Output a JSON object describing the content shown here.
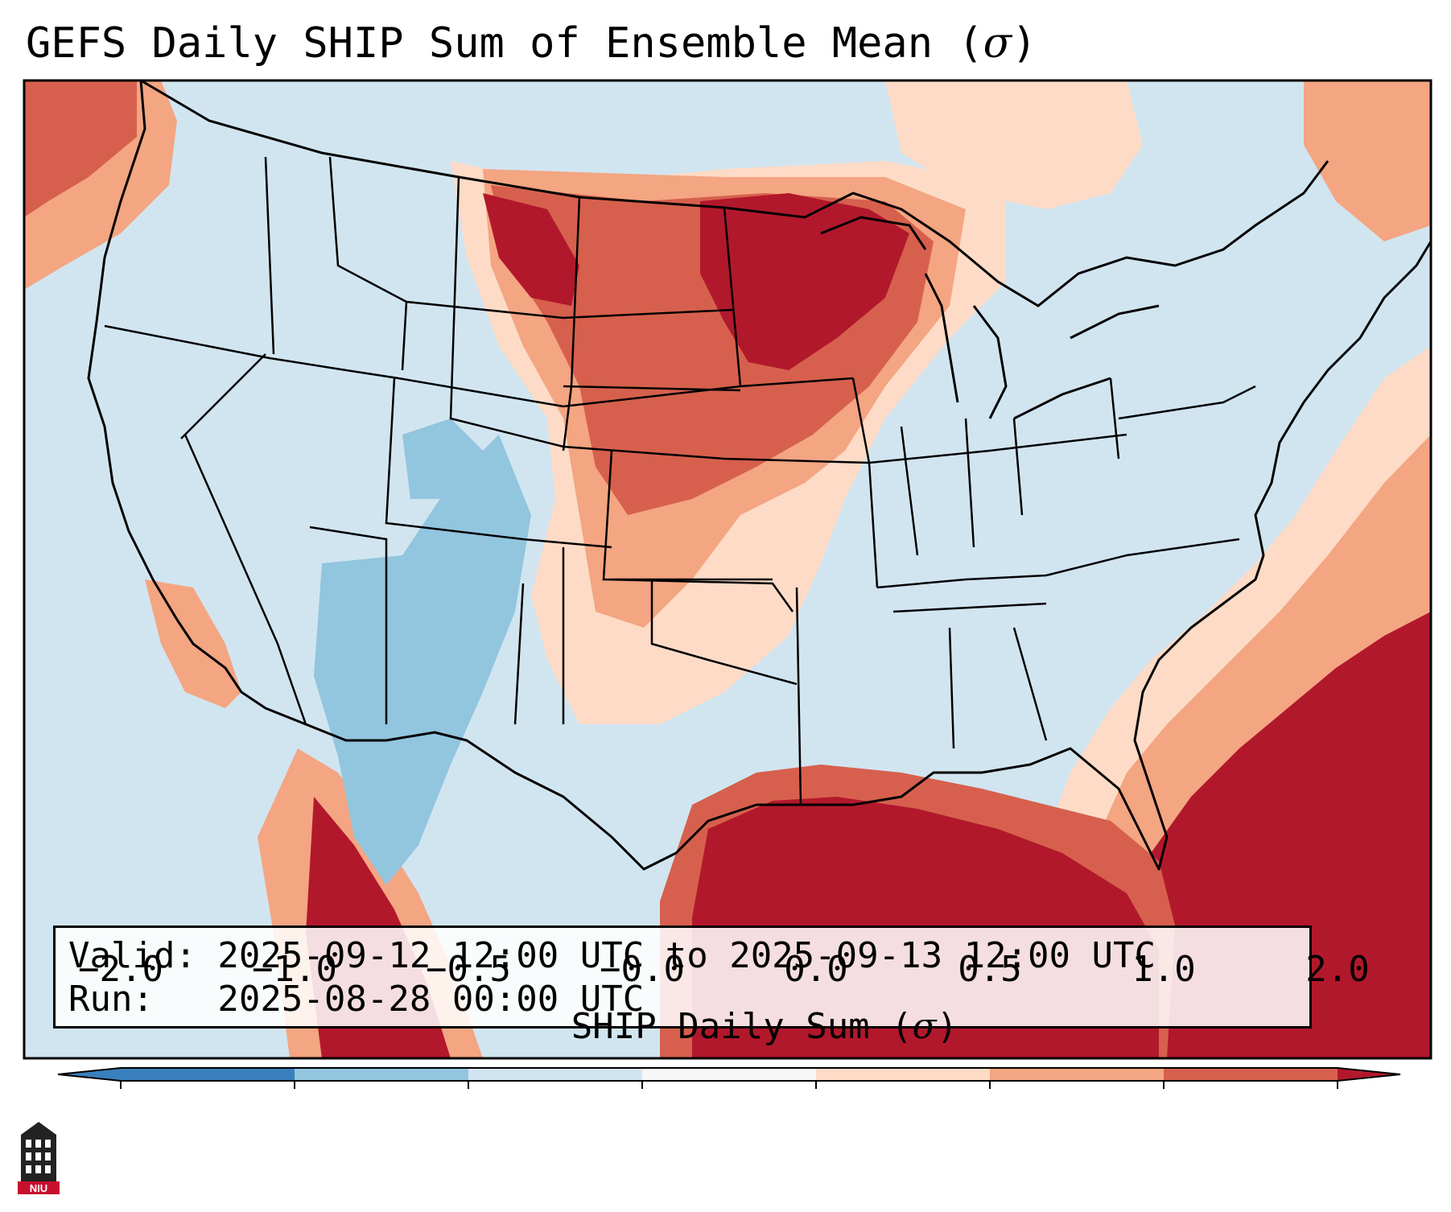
{
  "title": {
    "prefix": "GEFS Daily SHIP Sum of Ensemble Mean (",
    "symbol": "σ",
    "suffix": ")"
  },
  "info": {
    "valid_line": "Valid: 2025-09-12 12:00 UTC to 2025-09-13 12:00 UTC",
    "run_line": "Run:   2025-08-28 00:00 UTC"
  },
  "colorbar": {
    "title_prefix": "SHIP Daily Sum (",
    "title_symbol": "σ",
    "title_suffix": ")",
    "tick_labels": [
      "−2.0",
      "−1.0",
      "−0.5",
      "−0.0",
      "0.0",
      "0.5",
      "1.0",
      "2.0"
    ],
    "bins": [
      {
        "range": "< -2.0",
        "color": "#3a7fbd"
      },
      {
        "range": "-2.0 to -1.0",
        "color": "#3a7fbd"
      },
      {
        "range": "-1.0 to -0.5",
        "color": "#92c5de"
      },
      {
        "range": "-0.5 to 0.0",
        "color": "#d1e5f0"
      },
      {
        "range": "0.0",
        "color": "#f7f7f7"
      },
      {
        "range": "0.0 to 0.5",
        "color": "#fddbc7"
      },
      {
        "range": "0.5 to 1.0",
        "color": "#f4a582"
      },
      {
        "range": "1.0 to 2.0",
        "color": "#d6604d"
      },
      {
        "range": "> 2.0",
        "color": "#b2182b"
      }
    ]
  },
  "logo": {
    "text": "NIU"
  }
}
